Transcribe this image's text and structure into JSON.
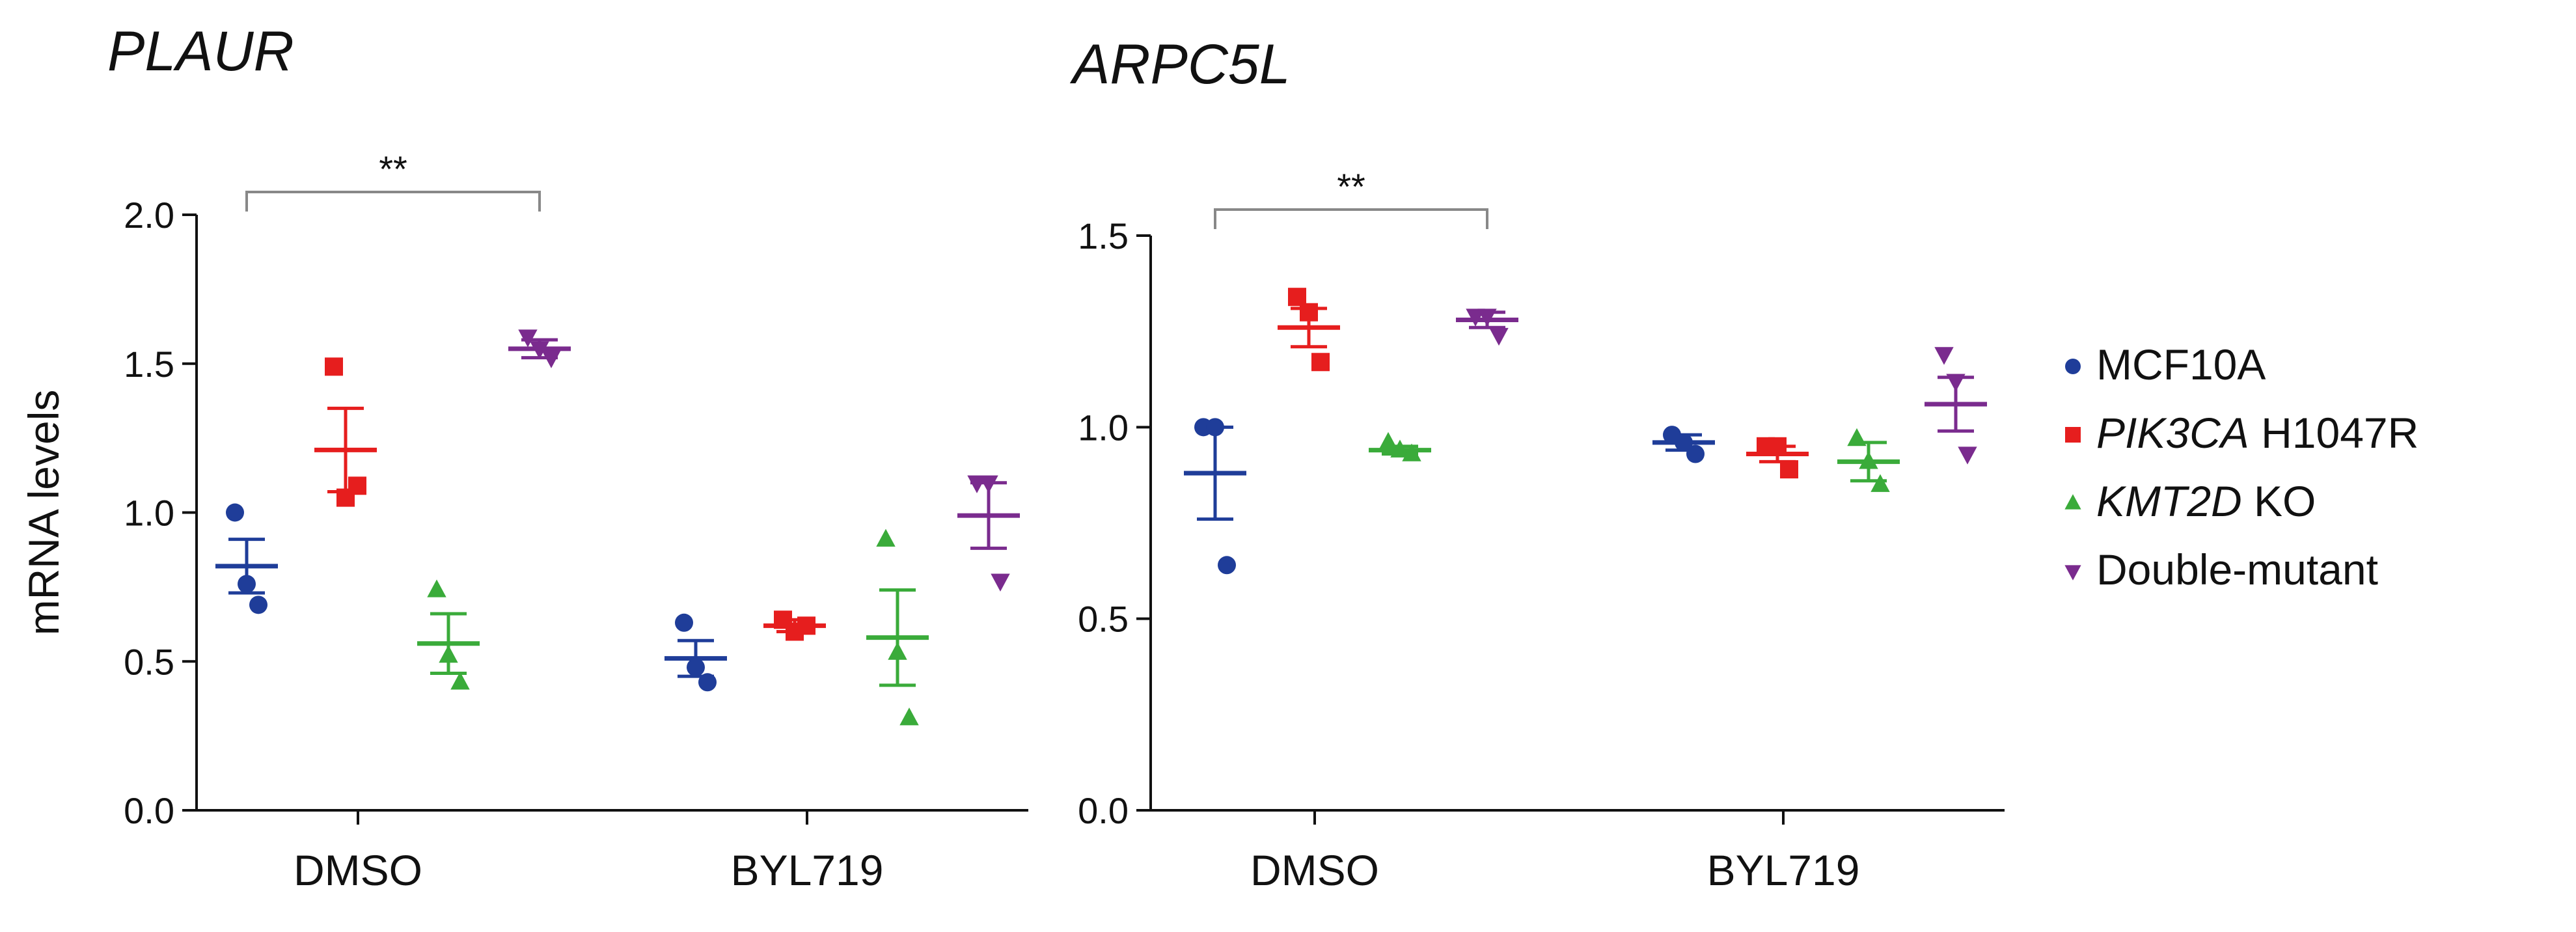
{
  "chart_data": [
    {
      "type": "scatter",
      "title": "PLAUR",
      "ylabel": "mRNA levels",
      "xlabel": "",
      "ylim": [
        0,
        2.0
      ],
      "yticks": [
        "0.0",
        "0.5",
        "1.0",
        "1.5",
        "2.0"
      ],
      "categories": [
        "DMSO",
        "BYL719"
      ],
      "significance": {
        "label": "**",
        "from": "MCF10A",
        "to": "Double-mutant",
        "group": "DMSO"
      },
      "series": [
        {
          "name": "MCF10A",
          "mean": [
            0.82,
            0.51
          ],
          "sem": [
            0.09,
            0.06
          ],
          "points": [
            [
              1.0,
              0.76,
              0.69
            ],
            [
              0.63,
              0.48,
              0.43
            ]
          ]
        },
        {
          "name": "PIK3CA H1047R",
          "mean": [
            1.21,
            0.62
          ],
          "sem": [
            0.14,
            0.02
          ],
          "points": [
            [
              1.49,
              1.05,
              1.09
            ],
            [
              0.64,
              0.6,
              0.62
            ]
          ]
        },
        {
          "name": "KMT2D KO",
          "mean": [
            0.56,
            0.58
          ],
          "sem": [
            0.1,
            0.16
          ],
          "points": [
            [
              0.74,
              0.52,
              0.43
            ],
            [
              0.91,
              0.53,
              0.31
            ]
          ]
        },
        {
          "name": "Double-mutant",
          "mean": [
            1.55,
            0.99
          ],
          "sem": [
            0.03,
            0.11
          ],
          "points": [
            [
              1.59,
              1.55,
              1.52
            ],
            [
              1.1,
              1.1,
              0.77
            ]
          ]
        }
      ]
    },
    {
      "type": "scatter",
      "title": "ARPC5L",
      "ylabel": "",
      "xlabel": "",
      "ylim": [
        0,
        1.5
      ],
      "yticks": [
        "0.0",
        "0.5",
        "1.0",
        "1.5"
      ],
      "categories": [
        "DMSO",
        "BYL719"
      ],
      "significance": {
        "label": "**",
        "from": "MCF10A",
        "to": "Double-mutant",
        "group": "DMSO"
      },
      "series": [
        {
          "name": "MCF10A",
          "mean": [
            0.88,
            0.96
          ],
          "sem": [
            0.12,
            0.02
          ],
          "points": [
            [
              1.0,
              1.0,
              0.64
            ],
            [
              0.98,
              0.96,
              0.93
            ]
          ]
        },
        {
          "name": "PIK3CA H1047R",
          "mean": [
            1.26,
            0.93
          ],
          "sem": [
            0.05,
            0.02
          ],
          "points": [
            [
              1.34,
              1.3,
              1.17
            ],
            [
              0.95,
              0.95,
              0.89
            ]
          ]
        },
        {
          "name": "KMT2D KO",
          "mean": [
            0.94,
            0.91
          ],
          "sem": [
            0.01,
            0.05
          ],
          "points": [
            [
              0.96,
              0.94,
              0.93
            ],
            [
              0.97,
              0.91,
              0.85
            ]
          ]
        },
        {
          "name": "Double-mutant",
          "mean": [
            1.28,
            1.06
          ],
          "sem": [
            0.02,
            0.07
          ],
          "points": [
            [
              1.29,
              1.29,
              1.24
            ],
            [
              1.19,
              1.12,
              0.93
            ]
          ]
        }
      ]
    }
  ],
  "legend": {
    "position": "right",
    "entries": [
      {
        "label": "MCF10A",
        "italic": "",
        "rest": "MCF10A",
        "color": "#1f3d99",
        "marker": "circle"
      },
      {
        "label": "PIK3CA H1047R",
        "italic": "PIK3CA",
        "rest": " H1047R",
        "color": "#e61e1e",
        "marker": "square"
      },
      {
        "label": "KMT2D KO",
        "italic": "KMT2D",
        "rest": " KO",
        "color": "#3aab3a",
        "marker": "triangle-up"
      },
      {
        "label": "Double-mutant",
        "italic": "",
        "rest": "Double-mutant",
        "color": "#7a2b8e",
        "marker": "triangle-down"
      }
    ]
  },
  "colors": {
    "axis": "#111111",
    "bracket": "#888888"
  }
}
